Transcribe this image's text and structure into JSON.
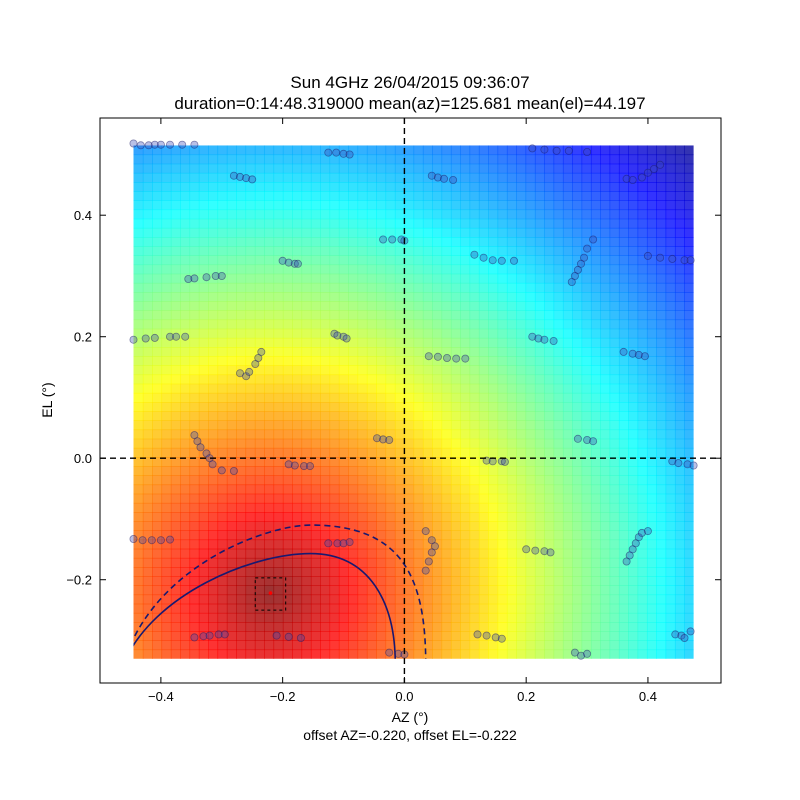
{
  "chart_data": {
    "type": "heatmap",
    "title_line1": "Sun 4GHz 26/04/2015 09:36:07",
    "title_line2": "duration=0:14:48.319000 mean(az)=125.681 mean(el)=44.197",
    "xlabel": "AZ (°)",
    "ylabel": "EL (°)",
    "footer": "offset AZ=-0.220, offset EL=-0.222",
    "xlim": [
      -0.5,
      0.52
    ],
    "ylim": [
      -0.37,
      0.56
    ],
    "xticks": [
      -0.4,
      -0.2,
      0.0,
      0.2,
      0.4
    ],
    "yticks": [
      -0.2,
      0.0,
      0.2,
      0.4
    ],
    "xtick_labels": [
      "−0.4",
      "−0.2",
      "0.0",
      "0.2",
      "0.4"
    ],
    "ytick_labels": [
      "−0.2",
      "0.0",
      "0.2",
      "0.4"
    ],
    "grid": false,
    "colormap": "jet",
    "heatmap_extent": {
      "x": [
        -0.445,
        0.475
      ],
      "y": [
        -0.33,
        0.515
      ]
    },
    "peak": {
      "x": -0.22,
      "y": -0.222
    },
    "peak_box": {
      "x": [
        -0.245,
        -0.195
      ],
      "y": [
        -0.25,
        -0.197
      ]
    },
    "colors": {
      "contour": "#191970",
      "points": "#3a4ab8",
      "peak": "#ff0000"
    },
    "crosshair": {
      "x": 0.0,
      "y": 0.0
    },
    "contour_levels": [
      {
        "style": "solid",
        "x_at_bottom_left": -0.445,
        "x_at_bottom_right": -0.015,
        "top_y": -0.157
      },
      {
        "style": "dashed",
        "x_at_bottom_left": -0.445,
        "x_at_bottom_right": 0.035,
        "top_y": -0.11
      }
    ],
    "scan_points": [
      [
        -0.445,
        0.518
      ],
      [
        -0.433,
        0.515
      ],
      [
        -0.42,
        0.515
      ],
      [
        -0.41,
        0.516
      ],
      [
        -0.4,
        0.516
      ],
      [
        -0.385,
        0.516
      ],
      [
        -0.365,
        0.516
      ],
      [
        -0.345,
        0.516
      ],
      [
        -0.125,
        0.503
      ],
      [
        -0.112,
        0.503
      ],
      [
        -0.1,
        0.501
      ],
      [
        -0.09,
        0.5
      ],
      [
        0.21,
        0.51
      ],
      [
        0.23,
        0.508
      ],
      [
        0.25,
        0.506
      ],
      [
        0.27,
        0.506
      ],
      [
        0.3,
        0.504
      ],
      [
        -0.28,
        0.465
      ],
      [
        -0.27,
        0.463
      ],
      [
        -0.26,
        0.461
      ],
      [
        -0.25,
        0.459
      ],
      [
        0.045,
        0.465
      ],
      [
        0.055,
        0.462
      ],
      [
        0.065,
        0.46
      ],
      [
        0.08,
        0.458
      ],
      [
        0.365,
        0.46
      ],
      [
        0.375,
        0.458
      ],
      [
        0.39,
        0.462
      ],
      [
        0.4,
        0.47
      ],
      [
        0.41,
        0.476
      ],
      [
        0.42,
        0.483
      ],
      [
        -0.035,
        0.36
      ],
      [
        -0.02,
        0.36
      ],
      [
        -0.005,
        0.36
      ],
      [
        0.0,
        0.358
      ],
      [
        -0.2,
        0.325
      ],
      [
        -0.19,
        0.322
      ],
      [
        -0.18,
        0.32
      ],
      [
        -0.175,
        0.32
      ],
      [
        0.115,
        0.335
      ],
      [
        0.13,
        0.33
      ],
      [
        0.145,
        0.326
      ],
      [
        0.16,
        0.325
      ],
      [
        0.18,
        0.325
      ],
      [
        0.275,
        0.29
      ],
      [
        0.28,
        0.3
      ],
      [
        0.285,
        0.31
      ],
      [
        0.29,
        0.32
      ],
      [
        0.295,
        0.33
      ],
      [
        0.3,
        0.345
      ],
      [
        0.31,
        0.36
      ],
      [
        0.4,
        0.333
      ],
      [
        0.42,
        0.33
      ],
      [
        0.44,
        0.328
      ],
      [
        0.46,
        0.326
      ],
      [
        0.47,
        0.326
      ],
      [
        -0.355,
        0.295
      ],
      [
        -0.345,
        0.296
      ],
      [
        -0.325,
        0.298
      ],
      [
        -0.31,
        0.3
      ],
      [
        -0.3,
        0.3
      ],
      [
        -0.445,
        0.195
      ],
      [
        -0.425,
        0.197
      ],
      [
        -0.41,
        0.198
      ],
      [
        -0.385,
        0.2
      ],
      [
        -0.375,
        0.2
      ],
      [
        -0.36,
        0.2
      ],
      [
        -0.115,
        0.205
      ],
      [
        -0.11,
        0.202
      ],
      [
        -0.1,
        0.2
      ],
      [
        -0.095,
        0.197
      ],
      [
        0.21,
        0.2
      ],
      [
        0.22,
        0.197
      ],
      [
        0.23,
        0.195
      ],
      [
        0.245,
        0.193
      ],
      [
        -0.27,
        0.14
      ],
      [
        -0.26,
        0.135
      ],
      [
        -0.255,
        0.142
      ],
      [
        -0.245,
        0.155
      ],
      [
        -0.24,
        0.165
      ],
      [
        -0.235,
        0.175
      ],
      [
        0.04,
        0.168
      ],
      [
        0.055,
        0.167
      ],
      [
        0.07,
        0.165
      ],
      [
        0.085,
        0.164
      ],
      [
        0.1,
        0.164
      ],
      [
        0.36,
        0.175
      ],
      [
        0.375,
        0.172
      ],
      [
        0.385,
        0.17
      ],
      [
        0.395,
        0.168
      ],
      [
        -0.345,
        0.038
      ],
      [
        -0.34,
        0.028
      ],
      [
        -0.335,
        0.018
      ],
      [
        -0.325,
        0.008
      ],
      [
        -0.32,
        0.0
      ],
      [
        -0.315,
        -0.01
      ],
      [
        -0.3,
        -0.02
      ],
      [
        -0.28,
        -0.021
      ],
      [
        -0.045,
        0.033
      ],
      [
        -0.035,
        0.031
      ],
      [
        -0.025,
        0.03
      ],
      [
        0.285,
        0.032
      ],
      [
        0.3,
        0.03
      ],
      [
        0.31,
        0.028
      ],
      [
        -0.19,
        -0.01
      ],
      [
        -0.18,
        -0.012
      ],
      [
        -0.165,
        -0.013
      ],
      [
        -0.155,
        -0.013
      ],
      [
        0.135,
        -0.004
      ],
      [
        0.145,
        -0.005
      ],
      [
        0.16,
        -0.005
      ],
      [
        0.165,
        -0.006
      ],
      [
        0.44,
        -0.005
      ],
      [
        0.45,
        -0.008
      ],
      [
        0.465,
        -0.01
      ],
      [
        0.475,
        -0.012
      ],
      [
        -0.445,
        -0.133
      ],
      [
        -0.43,
        -0.135
      ],
      [
        -0.415,
        -0.135
      ],
      [
        -0.4,
        -0.135
      ],
      [
        -0.385,
        -0.134
      ],
      [
        -0.125,
        -0.14
      ],
      [
        -0.11,
        -0.14
      ],
      [
        -0.1,
        -0.14
      ],
      [
        -0.09,
        -0.138
      ],
      [
        0.035,
        -0.12
      ],
      [
        0.045,
        -0.135
      ],
      [
        0.05,
        -0.145
      ],
      [
        0.045,
        -0.155
      ],
      [
        0.04,
        -0.17
      ],
      [
        0.035,
        -0.185
      ],
      [
        0.2,
        -0.15
      ],
      [
        0.215,
        -0.152
      ],
      [
        0.23,
        -0.153
      ],
      [
        0.24,
        -0.155
      ],
      [
        0.365,
        -0.17
      ],
      [
        0.37,
        -0.16
      ],
      [
        0.375,
        -0.15
      ],
      [
        0.38,
        -0.14
      ],
      [
        0.385,
        -0.13
      ],
      [
        0.39,
        -0.123
      ],
      [
        0.4,
        -0.12
      ],
      [
        -0.345,
        -0.295
      ],
      [
        -0.33,
        -0.293
      ],
      [
        -0.32,
        -0.292
      ],
      [
        -0.305,
        -0.29
      ],
      [
        -0.295,
        -0.29
      ],
      [
        -0.21,
        -0.292
      ],
      [
        -0.19,
        -0.294
      ],
      [
        -0.17,
        -0.296
      ],
      [
        0.12,
        -0.29
      ],
      [
        0.135,
        -0.292
      ],
      [
        0.15,
        -0.295
      ],
      [
        0.16,
        -0.297
      ],
      [
        0.445,
        -0.29
      ],
      [
        0.455,
        -0.292
      ],
      [
        0.46,
        -0.296
      ],
      [
        0.47,
        -0.285
      ],
      [
        -0.025,
        -0.32
      ],
      [
        -0.01,
        -0.322
      ],
      [
        0.0,
        -0.323
      ],
      [
        0.28,
        -0.32
      ],
      [
        0.29,
        -0.325
      ],
      [
        0.3,
        -0.322
      ]
    ]
  }
}
